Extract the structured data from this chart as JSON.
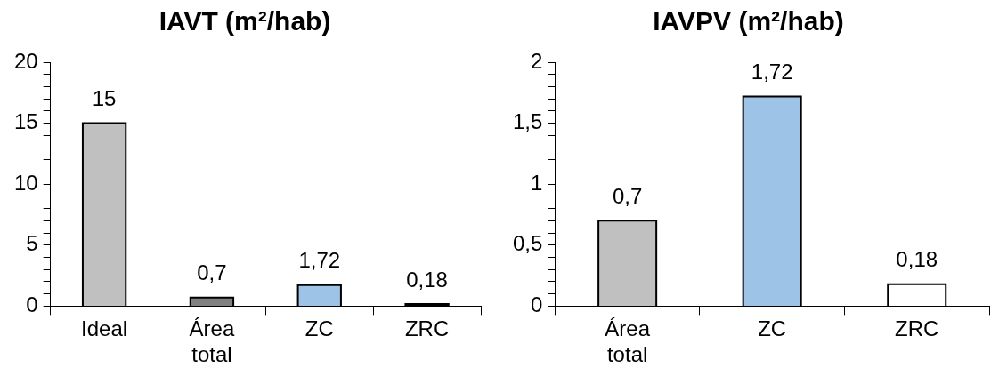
{
  "chart_data": [
    {
      "type": "bar",
      "title": "IAVT (m²/hab)",
      "categories": [
        "Ideal",
        "Área total",
        "ZC",
        "ZRC"
      ],
      "values": [
        15,
        0.7,
        1.72,
        0.18
      ],
      "colors": [
        "#c0c0c0",
        "#808080",
        "#9dc3e6",
        "#000000"
      ],
      "value_labels": [
        "15",
        "0,7",
        "1,72",
        "0,18"
      ],
      "ylim": [
        0,
        20
      ],
      "yticks": [
        0,
        {
          "value": 1,
          "label": null
        },
        {
          "value": 2,
          "label": null
        },
        {
          "value": 3,
          "label": null
        },
        {
          "value": 4,
          "label": null
        },
        5,
        {
          "value": 6,
          "label": null
        },
        {
          "value": 7,
          "label": null
        },
        {
          "value": 8,
          "label": null
        },
        {
          "value": 9,
          "label": null
        },
        10,
        {
          "value": 11,
          "label": null
        },
        {
          "value": 12,
          "label": null
        },
        {
          "value": 13,
          "label": null
        },
        {
          "value": 14,
          "label": null
        },
        15,
        {
          "value": 16,
          "label": null
        },
        {
          "value": 17,
          "label": null
        },
        {
          "value": 18,
          "label": null
        },
        {
          "value": 19,
          "label": null
        },
        20
      ]
    },
    {
      "type": "bar",
      "title": "IAVPV (m²/hab)",
      "categories": [
        "Área total",
        "ZC",
        "ZRC"
      ],
      "values": [
        0.7,
        1.72,
        0.18
      ],
      "colors": [
        "#c0c0c0",
        "#9dc3e6",
        "#ffffff"
      ],
      "value_labels": [
        "0,7",
        "1,72",
        "0,18"
      ],
      "ylim": [
        0,
        2
      ],
      "yticks": [
        0,
        {
          "value": 0.1,
          "label": null
        },
        {
          "value": 0.2,
          "label": null
        },
        {
          "value": 0.3,
          "label": null
        },
        {
          "value": 0.4,
          "label": null
        },
        {
          "value": 0.5,
          "label": "0,5"
        },
        {
          "value": 0.6,
          "label": null
        },
        {
          "value": 0.7,
          "label": null
        },
        {
          "value": 0.8,
          "label": null
        },
        {
          "value": 0.9,
          "label": null
        },
        1,
        {
          "value": 1.1,
          "label": null
        },
        {
          "value": 1.2,
          "label": null
        },
        {
          "value": 1.3,
          "label": null
        },
        {
          "value": 1.4,
          "label": null
        },
        {
          "value": 1.5,
          "label": "1,5"
        },
        {
          "value": 1.6,
          "label": null
        },
        {
          "value": 1.7,
          "label": null
        },
        {
          "value": 1.8,
          "label": null
        },
        {
          "value": 1.9,
          "label": null
        },
        2
      ]
    }
  ]
}
